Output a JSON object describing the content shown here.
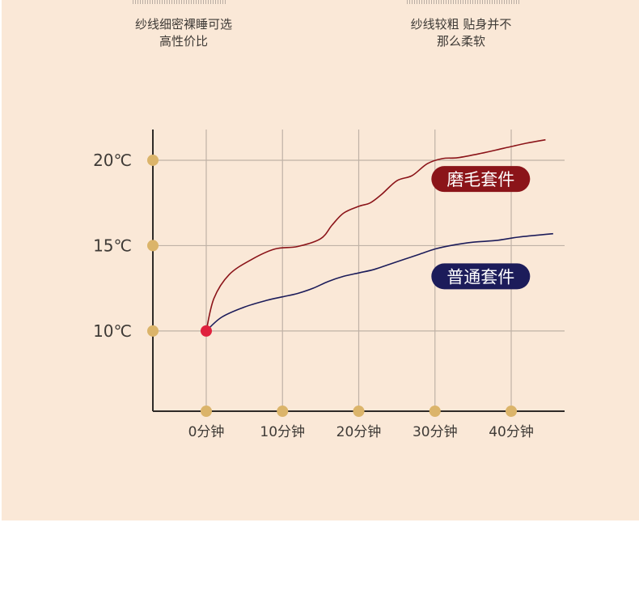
{
  "colors": {
    "background": "#fae8d7",
    "gridline": "#bfb2a6",
    "axis": "#2e2a27",
    "marker": "#dbb46a",
    "origin_point": "#e0213e",
    "series_brushed": "#8b1419",
    "series_regular": "#1c1c5a"
  },
  "top_captions": {
    "left": [
      "纱线细密裸睡可选",
      "高性价比"
    ],
    "right": [
      "纱线较粗 贴身并不",
      "那么柔软"
    ]
  },
  "chart_data": {
    "type": "line",
    "title": "",
    "xlabel": "",
    "ylabel": "",
    "x_tick_labels": [
      "0分钟",
      "10分钟",
      "20分钟",
      "30分钟",
      "40分钟"
    ],
    "x_ticks": [
      0,
      10,
      20,
      30,
      40
    ],
    "y_tick_labels": [
      "10℃",
      "15℃",
      "20℃"
    ],
    "y_ticks": [
      10,
      15,
      20
    ],
    "xlim": [
      -7,
      47
    ],
    "ylim": [
      5.3,
      21.8
    ],
    "grid": true,
    "legend": "inline labels",
    "start_point": {
      "x": 0,
      "y": 10
    },
    "series": [
      {
        "name": "磨毛套件",
        "label_anchor": {
          "x": 36,
          "y": 18.9
        },
        "x": [
          0,
          1,
          3,
          6,
          9,
          12,
          15,
          16.5,
          18,
          20,
          21.5,
          23,
          25,
          27,
          29,
          31,
          33,
          36,
          39,
          42,
          44.5
        ],
        "y": [
          10,
          11.9,
          13.3,
          14.2,
          14.8,
          14.95,
          15.4,
          16.2,
          16.9,
          17.3,
          17.5,
          18.0,
          18.8,
          19.1,
          19.8,
          20.1,
          20.15,
          20.4,
          20.7,
          21.0,
          21.2
        ]
      },
      {
        "name": "普通套件",
        "label_anchor": {
          "x": 36,
          "y": 13.2
        },
        "x": [
          0,
          2,
          5,
          8,
          10,
          12,
          14,
          16,
          18,
          20,
          22,
          24,
          26,
          28,
          30,
          32,
          35,
          38,
          41,
          45.5
        ],
        "y": [
          10,
          10.8,
          11.4,
          11.8,
          12.0,
          12.2,
          12.5,
          12.9,
          13.2,
          13.4,
          13.6,
          13.9,
          14.2,
          14.5,
          14.8,
          15.0,
          15.2,
          15.3,
          15.5,
          15.7
        ]
      }
    ]
  }
}
